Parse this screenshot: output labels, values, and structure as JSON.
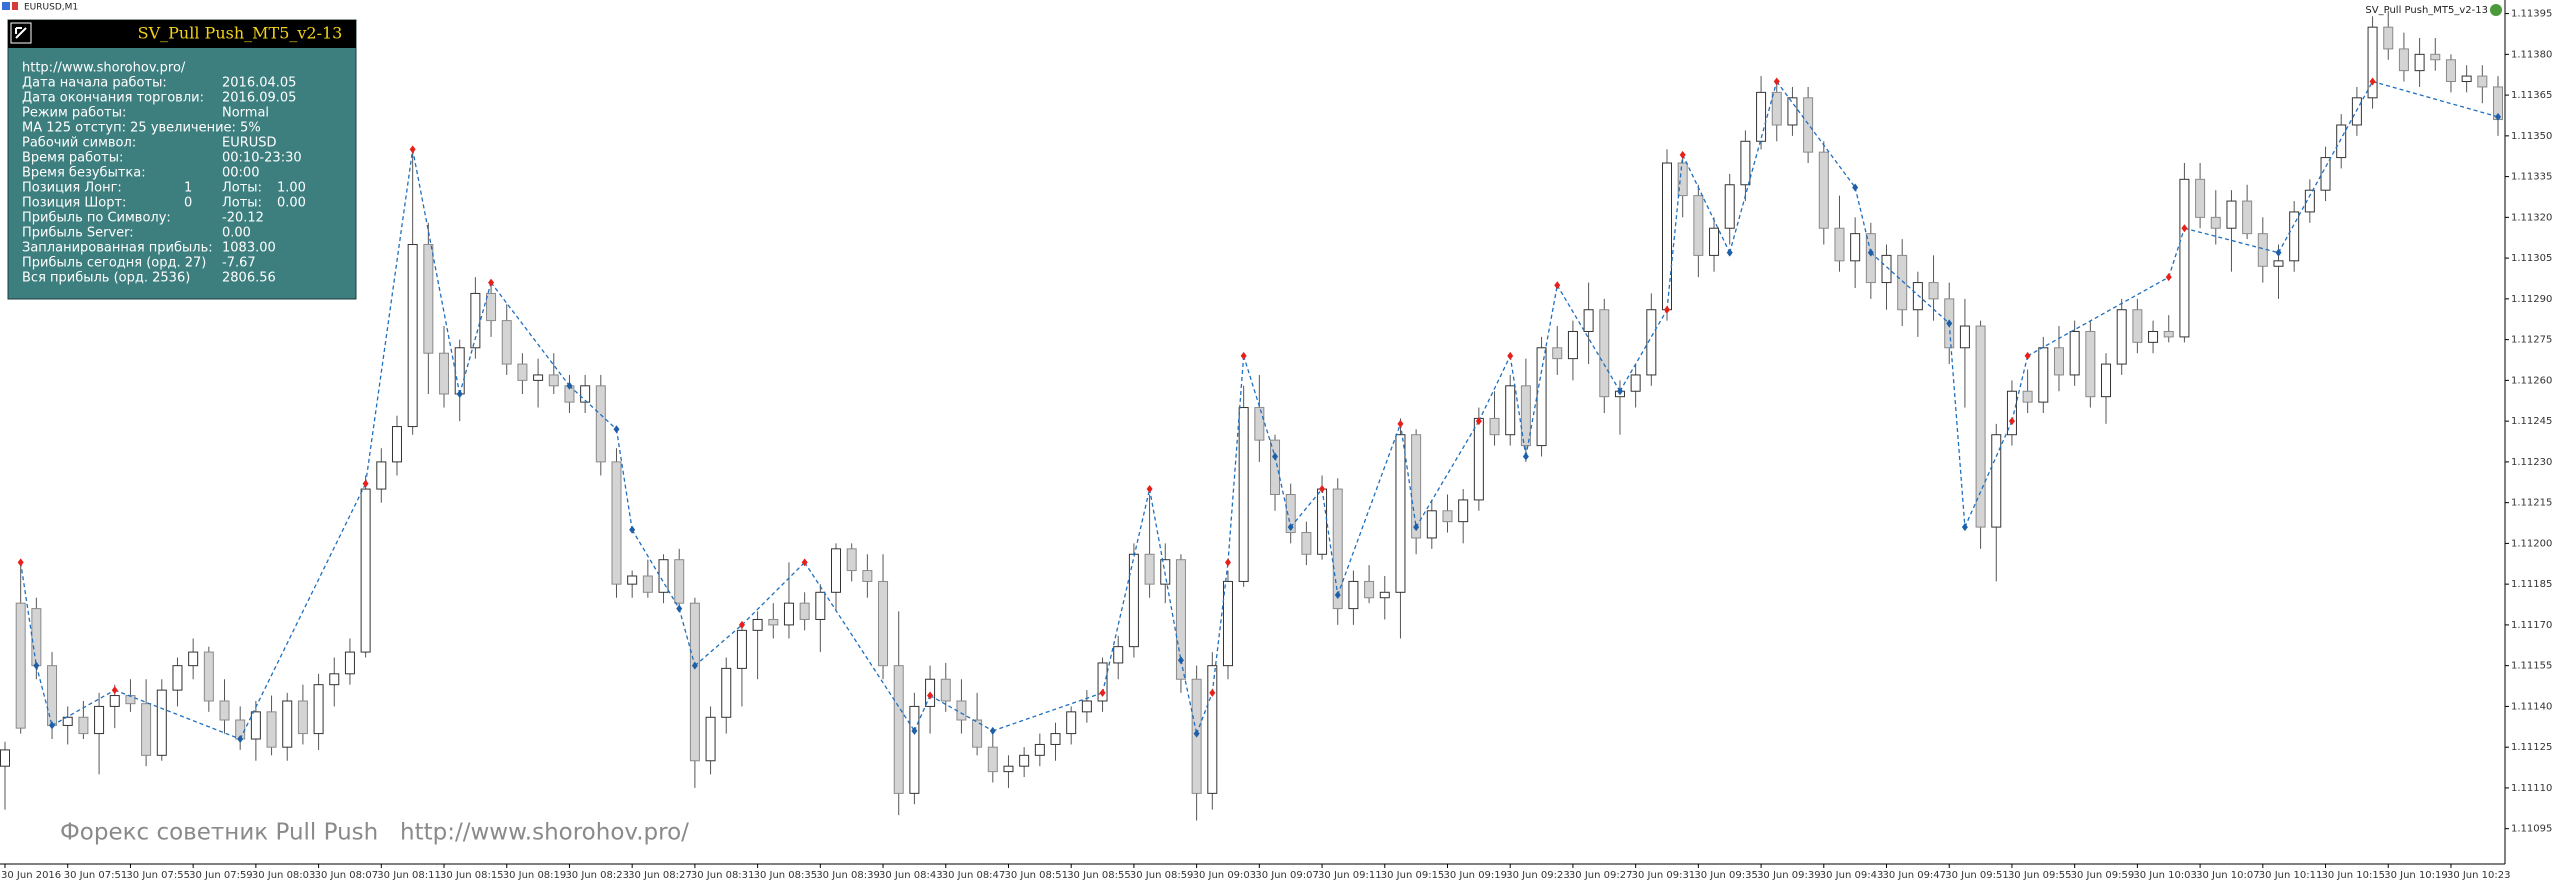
{
  "window_title": "EURUSD,M1",
  "expert_label": "SV_Pull Push_MT5_v2-13",
  "panel": {
    "title": "SV_Pull Push_MT5_v2-13",
    "rows": [
      [
        "http://www.shorohov.pro/"
      ],
      [
        "Дата начала работы:",
        "2016.04.05"
      ],
      [
        "Дата окончания торговли:",
        "2016.09.05"
      ],
      [
        "Режим работы:",
        "Normal"
      ],
      [
        "MA 125 отступ: 25 увеличение: 5%"
      ],
      [
        "Рабочий символ:",
        "EURUSD"
      ],
      [
        "Время работы:",
        "00:10-23:30"
      ],
      [
        "Время безубытка:",
        "00:00"
      ],
      [
        "Позиция Лонг:",
        "1",
        "Лоты:",
        "1.00"
      ],
      [
        "Позиция Шорт:",
        "0",
        "Лоты:",
        "0.00"
      ],
      [
        "Прибыль по Символу:",
        "-20.12"
      ],
      [
        "Прибыль Server:",
        "0.00"
      ],
      [
        "Запланированная прибыль:",
        "1083.00"
      ],
      [
        "Прибыль сегодня (орд. 27)",
        "-7.67"
      ],
      [
        "Вся прибыль (орд. 2536)",
        "2806.56"
      ]
    ]
  },
  "watermark": [
    "Форекс советник Pull Push",
    "http://www.shorohov.pro/"
  ],
  "chart_data": {
    "type": "candlestick",
    "categories": [
      "30 Jun 2016",
      null,
      null,
      null,
      "30 Jun 07:51",
      null,
      null,
      null,
      "30 Jun 07:55",
      null,
      null,
      null,
      "30 Jun 07:59",
      null,
      null,
      null,
      "30 Jun 08:03",
      null,
      null,
      null,
      "30 Jun 08:07",
      null,
      null,
      null,
      "30 Jun 08:11",
      null,
      null,
      null,
      "30 Jun 08:15",
      null,
      null,
      null,
      "30 Jun 08:19",
      null,
      null,
      null,
      "30 Jun 08:23",
      null,
      null,
      null,
      "30 Jun 08:27",
      null,
      null,
      null,
      "30 Jun 08:31",
      null,
      null,
      null,
      "30 Jun 08:35",
      null,
      null,
      null,
      "30 Jun 08:39",
      null,
      null,
      null,
      "30 Jun 08:43",
      null,
      null,
      null,
      "30 Jun 08:47",
      null,
      null,
      null,
      "30 Jun 08:51",
      null,
      null,
      null,
      "30 Jun 08:55",
      null,
      null,
      null,
      "30 Jun 08:59",
      null,
      null,
      null,
      "30 Jun 09:03",
      null,
      null,
      null,
      "30 Jun 09:07",
      null,
      null,
      null,
      "30 Jun 09:11",
      null,
      null,
      null,
      "30 Jun 09:15",
      null,
      null,
      null,
      "30 Jun 09:19",
      null,
      null,
      null,
      "30 Jun 09:23",
      null,
      null,
      null,
      "30 Jun 09:27",
      null,
      null,
      null,
      "30 Jun 09:31",
      null,
      null,
      null,
      "30 Jun 09:35",
      null,
      null,
      null,
      "30 Jun 09:39",
      null,
      null,
      null,
      "30 Jun 09:43",
      null,
      null,
      null,
      "30 Jun 09:47",
      null,
      null,
      null,
      "30 Jun 09:51",
      null,
      null,
      null,
      "30 Jun 09:55",
      null,
      null,
      null,
      "30 Jun 09:59",
      null,
      null,
      null,
      "30 Jun 10:03",
      null,
      null,
      null,
      "30 Jun 10:07",
      null,
      null,
      null,
      "30 Jun 10:11",
      null,
      null,
      null,
      "30 Jun 10:15",
      null,
      null,
      null,
      "30 Jun 10:19",
      null,
      null,
      null,
      "30 Jun 10:23",
      null,
      null,
      null
    ],
    "open": [
      1.11118,
      1.11178,
      1.11176,
      1.11155,
      1.11133,
      1.11136,
      1.1113,
      1.1114,
      1.11144,
      1.11141,
      1.11122,
      1.11146,
      1.11155,
      1.1116,
      1.11142,
      1.11135,
      1.11128,
      1.11138,
      1.11125,
      1.11142,
      1.1113,
      1.11148,
      1.11152,
      1.1116,
      1.1122,
      1.1123,
      1.11243,
      1.1131,
      1.1127,
      1.11255,
      1.11272,
      1.11292,
      1.11282,
      1.11266,
      1.1126,
      1.11262,
      1.11258,
      1.11252,
      1.11258,
      1.1123,
      1.11185,
      1.11188,
      1.11182,
      1.11194,
      1.11178,
      1.1112,
      1.11136,
      1.11154,
      1.11168,
      1.11172,
      1.1117,
      1.11178,
      1.11172,
      1.11182,
      1.11198,
      1.1119,
      1.11186,
      1.11155,
      1.11108,
      1.1114,
      1.1115,
      1.11142,
      1.11135,
      1.11125,
      1.11116,
      1.11118,
      1.11122,
      1.11126,
      1.1113,
      1.11138,
      1.11142,
      1.11156,
      1.11162,
      1.11196,
      1.11185,
      1.11194,
      1.1115,
      1.11108,
      1.11155,
      1.11186,
      1.1125,
      1.11238,
      1.11218,
      1.11204,
      1.11196,
      1.1122,
      1.11176,
      1.11186,
      1.1118,
      1.11182,
      1.1124,
      1.11202,
      1.11212,
      1.11208,
      1.11216,
      1.11246,
      1.1124,
      1.11258,
      1.11236,
      1.11272,
      1.11268,
      1.11278,
      1.11286,
      1.11254,
      1.11256,
      1.11262,
      1.11286,
      1.1134,
      1.11328,
      1.11306,
      1.11316,
      1.11332,
      1.11348,
      1.11366,
      1.11354,
      1.11364,
      1.11344,
      1.11316,
      1.11304,
      1.11314,
      1.11296,
      1.11306,
      1.11286,
      1.11296,
      1.1129,
      1.11272,
      1.1128,
      1.11206,
      1.1124,
      1.11256,
      1.11252,
      1.11272,
      1.11262,
      1.11278,
      1.11254,
      1.11266,
      1.11286,
      1.11274,
      1.11278,
      1.11276,
      1.11334,
      1.1132,
      1.11316,
      1.11326,
      1.11314,
      1.11302,
      1.11304,
      1.11322,
      1.1133,
      1.11342,
      1.11354,
      1.11364,
      1.1139,
      1.11382,
      1.11374,
      1.1138,
      1.11378,
      1.1137,
      1.11372,
      1.11368
    ],
    "high": [
      1.11127,
      1.11193,
      1.1118,
      1.1116,
      1.1114,
      1.11142,
      1.11145,
      1.11148,
      1.1115,
      1.1115,
      1.1115,
      1.11158,
      1.11165,
      1.11162,
      1.1115,
      1.1114,
      1.11142,
      1.11144,
      1.11145,
      1.11148,
      1.11152,
      1.11158,
      1.11165,
      1.11225,
      1.11235,
      1.11247,
      1.11345,
      1.11318,
      1.1128,
      1.11275,
      1.11298,
      1.11296,
      1.11288,
      1.1127,
      1.11268,
      1.1127,
      1.11262,
      1.11262,
      1.11262,
      1.11235,
      1.1119,
      1.11194,
      1.11196,
      1.11198,
      1.1118,
      1.1114,
      1.11158,
      1.1117,
      1.11175,
      1.11178,
      1.11193,
      1.11182,
      1.11185,
      1.112,
      1.112,
      1.11196,
      1.11196,
      1.11175,
      1.11145,
      1.11155,
      1.11156,
      1.1115,
      1.11145,
      1.1113,
      1.11122,
      1.11125,
      1.1113,
      1.11134,
      1.1114,
      1.11146,
      1.11158,
      1.11166,
      1.112,
      1.11218,
      1.112,
      1.11196,
      1.11155,
      1.1116,
      1.1119,
      1.11258,
      1.11262,
      1.1124,
      1.11222,
      1.11208,
      1.11225,
      1.11224,
      1.1119,
      1.11192,
      1.11188,
      1.11246,
      1.11242,
      1.11216,
      1.11218,
      1.1122,
      1.1125,
      1.11256,
      1.11262,
      1.11268,
      1.11276,
      1.1128,
      1.11282,
      1.11296,
      1.1129,
      1.1126,
      1.11266,
      1.11292,
      1.11345,
      1.11344,
      1.11332,
      1.1132,
      1.11336,
      1.11352,
      1.11372,
      1.1137,
      1.11368,
      1.11368,
      1.11348,
      1.11328,
      1.1132,
      1.11318,
      1.1131,
      1.11312,
      1.113,
      1.11306,
      1.11296,
      1.1129,
      1.11282,
      1.11244,
      1.1126,
      1.11264,
      1.11276,
      1.1128,
      1.11282,
      1.11282,
      1.1127,
      1.1129,
      1.1129,
      1.11282,
      1.11284,
      1.1134,
      1.1134,
      1.1133,
      1.1133,
      1.11332,
      1.1132,
      1.1131,
      1.11326,
      1.11334,
      1.11346,
      1.11358,
      1.11368,
      1.11394,
      1.11396,
      1.11388,
      1.11386,
      1.11386,
      1.1138,
      1.11376,
      1.11376,
      1.11372
    ],
    "low": [
      1.11102,
      1.1113,
      1.1115,
      1.11128,
      1.11126,
      1.11128,
      1.11115,
      1.11132,
      1.11138,
      1.11118,
      1.1112,
      1.1114,
      1.1115,
      1.11138,
      1.1113,
      1.11124,
      1.1112,
      1.11122,
      1.1112,
      1.11126,
      1.11124,
      1.1114,
      1.11148,
      1.11158,
      1.11215,
      1.11225,
      1.1124,
      1.11255,
      1.1125,
      1.11245,
      1.11268,
      1.11276,
      1.11262,
      1.11255,
      1.1125,
      1.11255,
      1.11248,
      1.11248,
      1.11225,
      1.1118,
      1.1118,
      1.1118,
      1.11178,
      1.11175,
      1.1111,
      1.11115,
      1.1113,
      1.1114,
      1.1115,
      1.11165,
      1.11165,
      1.11168,
      1.1116,
      1.11175,
      1.11186,
      1.1118,
      1.1115,
      1.111,
      1.11104,
      1.1113,
      1.11138,
      1.1113,
      1.11122,
      1.11112,
      1.1111,
      1.11114,
      1.11118,
      1.1112,
      1.11126,
      1.11134,
      1.11138,
      1.1115,
      1.11158,
      1.1118,
      1.11178,
      1.11145,
      1.11098,
      1.11102,
      1.1115,
      1.11184,
      1.1123,
      1.11212,
      1.112,
      1.11192,
      1.11194,
      1.1117,
      1.1117,
      1.11178,
      1.11172,
      1.11165,
      1.11196,
      1.11198,
      1.11204,
      1.112,
      1.11212,
      1.11236,
      1.11236,
      1.1123,
      1.11232,
      1.11262,
      1.1126,
      1.11266,
      1.11248,
      1.1124,
      1.1125,
      1.11258,
      1.11282,
      1.1132,
      1.11298,
      1.113,
      1.1131,
      1.11326,
      1.11345,
      1.11348,
      1.1135,
      1.1134,
      1.1131,
      1.113,
      1.11294,
      1.1129,
      1.11286,
      1.1128,
      1.11276,
      1.11282,
      1.11266,
      1.1125,
      1.11198,
      1.11186,
      1.11236,
      1.11248,
      1.11248,
      1.11256,
      1.11258,
      1.1125,
      1.11244,
      1.11262,
      1.1127,
      1.1127,
      1.11274,
      1.11274,
      1.11316,
      1.1131,
      1.113,
      1.11312,
      1.11296,
      1.1129,
      1.113,
      1.11318,
      1.11326,
      1.11338,
      1.1135,
      1.1136,
      1.11378,
      1.1137,
      1.11368,
      1.11374,
      1.11366,
      1.11366,
      1.11362,
      1.1135
    ],
    "close": [
      1.11124,
      1.11132,
      1.11155,
      1.11133,
      1.11136,
      1.1113,
      1.1114,
      1.11144,
      1.11141,
      1.11122,
      1.11146,
      1.11155,
      1.1116,
      1.11142,
      1.11135,
      1.11128,
      1.11138,
      1.11125,
      1.11142,
      1.1113,
      1.11148,
      1.11152,
      1.1116,
      1.1122,
      1.1123,
      1.11243,
      1.1131,
      1.1127,
      1.11255,
      1.11272,
      1.11292,
      1.11282,
      1.11266,
      1.1126,
      1.11262,
      1.11258,
      1.11252,
      1.11258,
      1.1123,
      1.11185,
      1.11188,
      1.11182,
      1.11194,
      1.11178,
      1.1112,
      1.11136,
      1.11154,
      1.11168,
      1.11172,
      1.1117,
      1.11178,
      1.11172,
      1.11182,
      1.11198,
      1.1119,
      1.11186,
      1.11155,
      1.11108,
      1.1114,
      1.1115,
      1.11142,
      1.11135,
      1.11125,
      1.11116,
      1.11118,
      1.11122,
      1.11126,
      1.1113,
      1.11138,
      1.11142,
      1.11156,
      1.11162,
      1.11196,
      1.11185,
      1.11194,
      1.1115,
      1.11108,
      1.11155,
      1.11186,
      1.1125,
      1.11238,
      1.11218,
      1.11204,
      1.11196,
      1.1122,
      1.11176,
      1.11186,
      1.1118,
      1.11182,
      1.1124,
      1.11202,
      1.11212,
      1.11208,
      1.11216,
      1.11246,
      1.1124,
      1.11258,
      1.11236,
      1.11272,
      1.11268,
      1.11278,
      1.11286,
      1.11254,
      1.11256,
      1.11262,
      1.11286,
      1.1134,
      1.11328,
      1.11306,
      1.11316,
      1.11332,
      1.11348,
      1.11366,
      1.11354,
      1.11364,
      1.11344,
      1.11316,
      1.11304,
      1.11314,
      1.11296,
      1.11306,
      1.11286,
      1.11296,
      1.1129,
      1.11272,
      1.1128,
      1.11206,
      1.1124,
      1.11256,
      1.11252,
      1.11272,
      1.11262,
      1.11278,
      1.11254,
      1.11266,
      1.11286,
      1.11274,
      1.11278,
      1.11276,
      1.11334,
      1.1132,
      1.11316,
      1.11326,
      1.11314,
      1.11302,
      1.11304,
      1.11322,
      1.1133,
      1.11342,
      1.11354,
      1.11364,
      1.1139,
      1.11382,
      1.11374,
      1.1138,
      1.11378,
      1.1137,
      1.11372,
      1.11368,
      1.11356
    ],
    "zigzag": [
      null,
      1.11193,
      1.11155,
      1.11133,
      null,
      null,
      null,
      1.11146,
      null,
      null,
      null,
      null,
      null,
      null,
      null,
      1.11128,
      null,
      null,
      null,
      null,
      null,
      null,
      null,
      1.11222,
      null,
      null,
      1.11345,
      null,
      null,
      1.11255,
      null,
      1.11296,
      null,
      null,
      null,
      null,
      1.11258,
      null,
      null,
      1.11242,
      1.11205,
      null,
      null,
      1.11176,
      1.11155,
      null,
      null,
      1.1117,
      null,
      null,
      null,
      1.11193,
      null,
      null,
      null,
      null,
      null,
      null,
      1.11131,
      1.11144,
      null,
      null,
      null,
      1.11131,
      null,
      null,
      null,
      null,
      null,
      null,
      1.11145,
      null,
      null,
      1.1122,
      null,
      1.11157,
      1.1113,
      1.11145,
      1.11193,
      1.11269,
      null,
      1.11232,
      1.11206,
      null,
      1.1122,
      1.11181,
      null,
      null,
      null,
      1.11244,
      1.11206,
      null,
      null,
      null,
      1.11245,
      null,
      1.11269,
      1.11232,
      null,
      1.11295,
      null,
      null,
      null,
      1.11256,
      null,
      null,
      1.11286,
      1.11343,
      null,
      null,
      1.11307,
      null,
      null,
      1.1137,
      null,
      null,
      null,
      null,
      1.11331,
      1.11307,
      null,
      null,
      null,
      null,
      1.11281,
      1.11206,
      null,
      null,
      1.11245,
      1.11269,
      null,
      null,
      null,
      null,
      null,
      null,
      null,
      null,
      1.11298,
      1.11316,
      null,
      null,
      null,
      null,
      null,
      1.11307,
      null,
      null,
      null,
      null,
      null,
      1.1137,
      null,
      null,
      null,
      null,
      null,
      null,
      null,
      1.11357
    ],
    "ylim": [
      1.11082,
      1.114
    ],
    "yticks": [
      1.11395,
      {
        "value": 1.1138,
        "label": "1.11380"
      },
      1.11365,
      {
        "value": 1.1135,
        "label": "1.11350"
      },
      1.11335,
      {
        "value": 1.1132,
        "label": "1.11320"
      },
      1.11305,
      {
        "value": 1.1129,
        "label": "1.11290"
      },
      1.11275,
      {
        "value": 1.1126,
        "label": "1.11260"
      },
      1.11245,
      {
        "value": 1.1123,
        "label": "1.11230"
      },
      1.11215,
      {
        "value": 1.112,
        "label": "1.11200"
      },
      1.11185,
      {
        "value": 1.1117,
        "label": "1.11170"
      },
      1.11155,
      {
        "value": 1.1114,
        "label": "1.11140"
      },
      1.11125,
      {
        "value": 1.1111,
        "label": "1.11110"
      },
      1.11095
    ],
    "grid": false,
    "bull_color": "#ffffff",
    "bear_color": "#d4d4d4",
    "wick_color": "#555555",
    "zigzag_color": "#1f6fbf",
    "zigzag_up_color": "#e8201a",
    "zigzag_down_color": "#1f5fa8"
  }
}
